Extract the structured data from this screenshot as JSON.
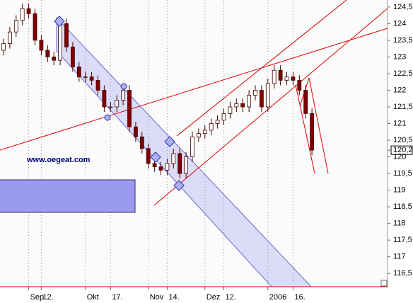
{
  "chart_data": {
    "type": "candlestick",
    "categories": [
      null,
      null,
      null,
      null,
      "Sep",
      null,
      "12.",
      null,
      null,
      null,
      null,
      null,
      null,
      "Okt",
      null,
      null,
      null,
      "17.",
      null,
      null,
      null,
      null,
      null,
      "Nov",
      null,
      null,
      "14.",
      null,
      null,
      null,
      null,
      null,
      "Dez",
      null,
      null,
      "12.",
      null,
      null,
      null,
      null,
      null,
      null,
      "2006",
      null,
      null,
      null,
      "16.",
      null,
      null,
      null
    ],
    "open": [
      123.2,
      123.4,
      123.75,
      124.1,
      124.45,
      124.3,
      123.5,
      123.2,
      123,
      122.9,
      124,
      123.3,
      122.7,
      122.4,
      122.4,
      122.3,
      122,
      121.5,
      121.5,
      121.7,
      122,
      120.9,
      120.6,
      120.25,
      119.8,
      119.7,
      119.6,
      119.8,
      120.1,
      119.5,
      120,
      120.6,
      120.7,
      120.8,
      121,
      121.1,
      121.3,
      121.5,
      121.6,
      121.5,
      121.85,
      122,
      121.5,
      122.2,
      122.6,
      122.3,
      122.4,
      122.3,
      122,
      121.3
    ],
    "high": [
      123.55,
      123.9,
      124.25,
      124.6,
      124.6,
      124.45,
      123.65,
      123.35,
      123.15,
      124.15,
      124.15,
      123.45,
      122.85,
      122.55,
      122.55,
      122.45,
      122.15,
      121.65,
      121.85,
      122.15,
      122.15,
      121.05,
      120.75,
      120.4,
      119.95,
      119.85,
      119.95,
      120.25,
      120.25,
      120.15,
      120.75,
      120.85,
      120.95,
      121.15,
      121.25,
      121.45,
      121.65,
      121.75,
      121.75,
      122,
      122.15,
      122.15,
      122.35,
      122.75,
      122.75,
      122.55,
      122.55,
      122.45,
      122.15,
      121.45
    ],
    "low": [
      123.05,
      123.25,
      123.6,
      123.95,
      124.15,
      123.35,
      123.05,
      122.85,
      122.75,
      122.75,
      123.15,
      122.55,
      122.25,
      122.25,
      122.15,
      121.85,
      121.35,
      121.35,
      121.35,
      121.55,
      120.75,
      120.45,
      120.1,
      119.65,
      119.55,
      119.45,
      119.45,
      119.65,
      119.35,
      119.35,
      119.85,
      120.45,
      120.55,
      120.65,
      120.85,
      120.95,
      121.15,
      121.35,
      121.35,
      121.35,
      121.7,
      121.35,
      121.35,
      122.05,
      122.15,
      122.15,
      122.15,
      121.85,
      121.15,
      120.05
    ],
    "close": [
      123.4,
      123.75,
      124.1,
      124.45,
      124.3,
      123.5,
      123.2,
      123,
      122.9,
      124,
      123.3,
      122.7,
      122.4,
      122.4,
      122.3,
      122,
      121.5,
      121.5,
      121.7,
      122,
      120.9,
      120.6,
      120.25,
      119.8,
      119.7,
      119.6,
      119.8,
      120.1,
      119.5,
      120,
      120.6,
      120.7,
      120.8,
      121,
      121.1,
      121.3,
      121.5,
      121.6,
      121.5,
      121.85,
      122,
      121.5,
      122.2,
      122.6,
      122.3,
      122.4,
      122.3,
      122,
      121.3,
      120.2
    ],
    "up_color": "#ffffff",
    "down_color": "#800000",
    "ylim": [
      116.1,
      124.71
    ],
    "yticks": [
      {
        "value": 124.5,
        "label": "124,5"
      },
      124,
      {
        "value": 123.5,
        "label": "123,5"
      },
      123,
      {
        "value": 122.5,
        "label": "122,5"
      },
      122,
      {
        "value": 121.5,
        "label": "121,5"
      },
      121,
      {
        "value": 120.5,
        "label": "120,5"
      },
      {
        "value": 120.2,
        "label": "120,2"
      },
      120,
      {
        "value": 119.5,
        "label": "119,5"
      },
      119,
      {
        "value": 118.5,
        "label": "118,5"
      },
      118,
      {
        "value": 117.5,
        "label": "117,5"
      },
      117,
      {
        "value": 116.5,
        "label": "116,5"
      }
    ],
    "grid": "x",
    "annotation": "www.oegeat.com"
  }
}
